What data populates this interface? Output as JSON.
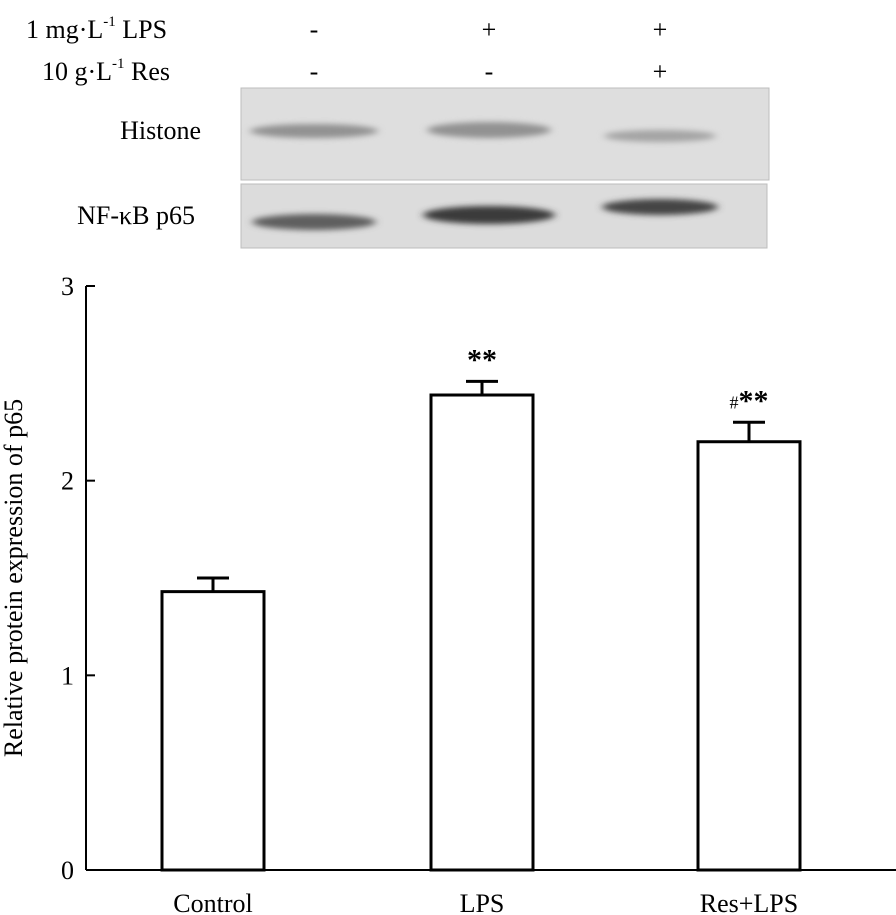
{
  "blot": {
    "treatments": [
      {
        "label_main": "1 mg·L",
        "label_sup": "-1",
        "label_tail": " LPS",
        "signs": [
          "-",
          "+",
          "+"
        ]
      },
      {
        "label_main": "10 g·L",
        "label_sup": "-1",
        "label_tail": " Res",
        "signs": [
          "-",
          "-",
          "+"
        ]
      }
    ],
    "bands": [
      {
        "label": "Histone",
        "intensity": [
          0.45,
          0.45,
          0.35
        ]
      },
      {
        "label": "NF-κB p65",
        "intensity": [
          0.75,
          0.95,
          0.9
        ]
      }
    ]
  },
  "chart_data": {
    "type": "bar",
    "categories": [
      "Control",
      "LPS",
      "Res+LPS"
    ],
    "values": [
      1.43,
      2.44,
      2.2
    ],
    "errors": [
      0.07,
      0.07,
      0.1
    ],
    "annotations": [
      "",
      "**",
      "#**"
    ],
    "ylabel": "Relative protein expression of p65",
    "xlabel": "",
    "ylim": [
      0,
      3
    ],
    "yticks": [
      "0",
      "1",
      "2",
      "3"
    ],
    "grid": false,
    "colors": {
      "bar_fill": "#ffffff",
      "bar_stroke": "#000000"
    }
  }
}
